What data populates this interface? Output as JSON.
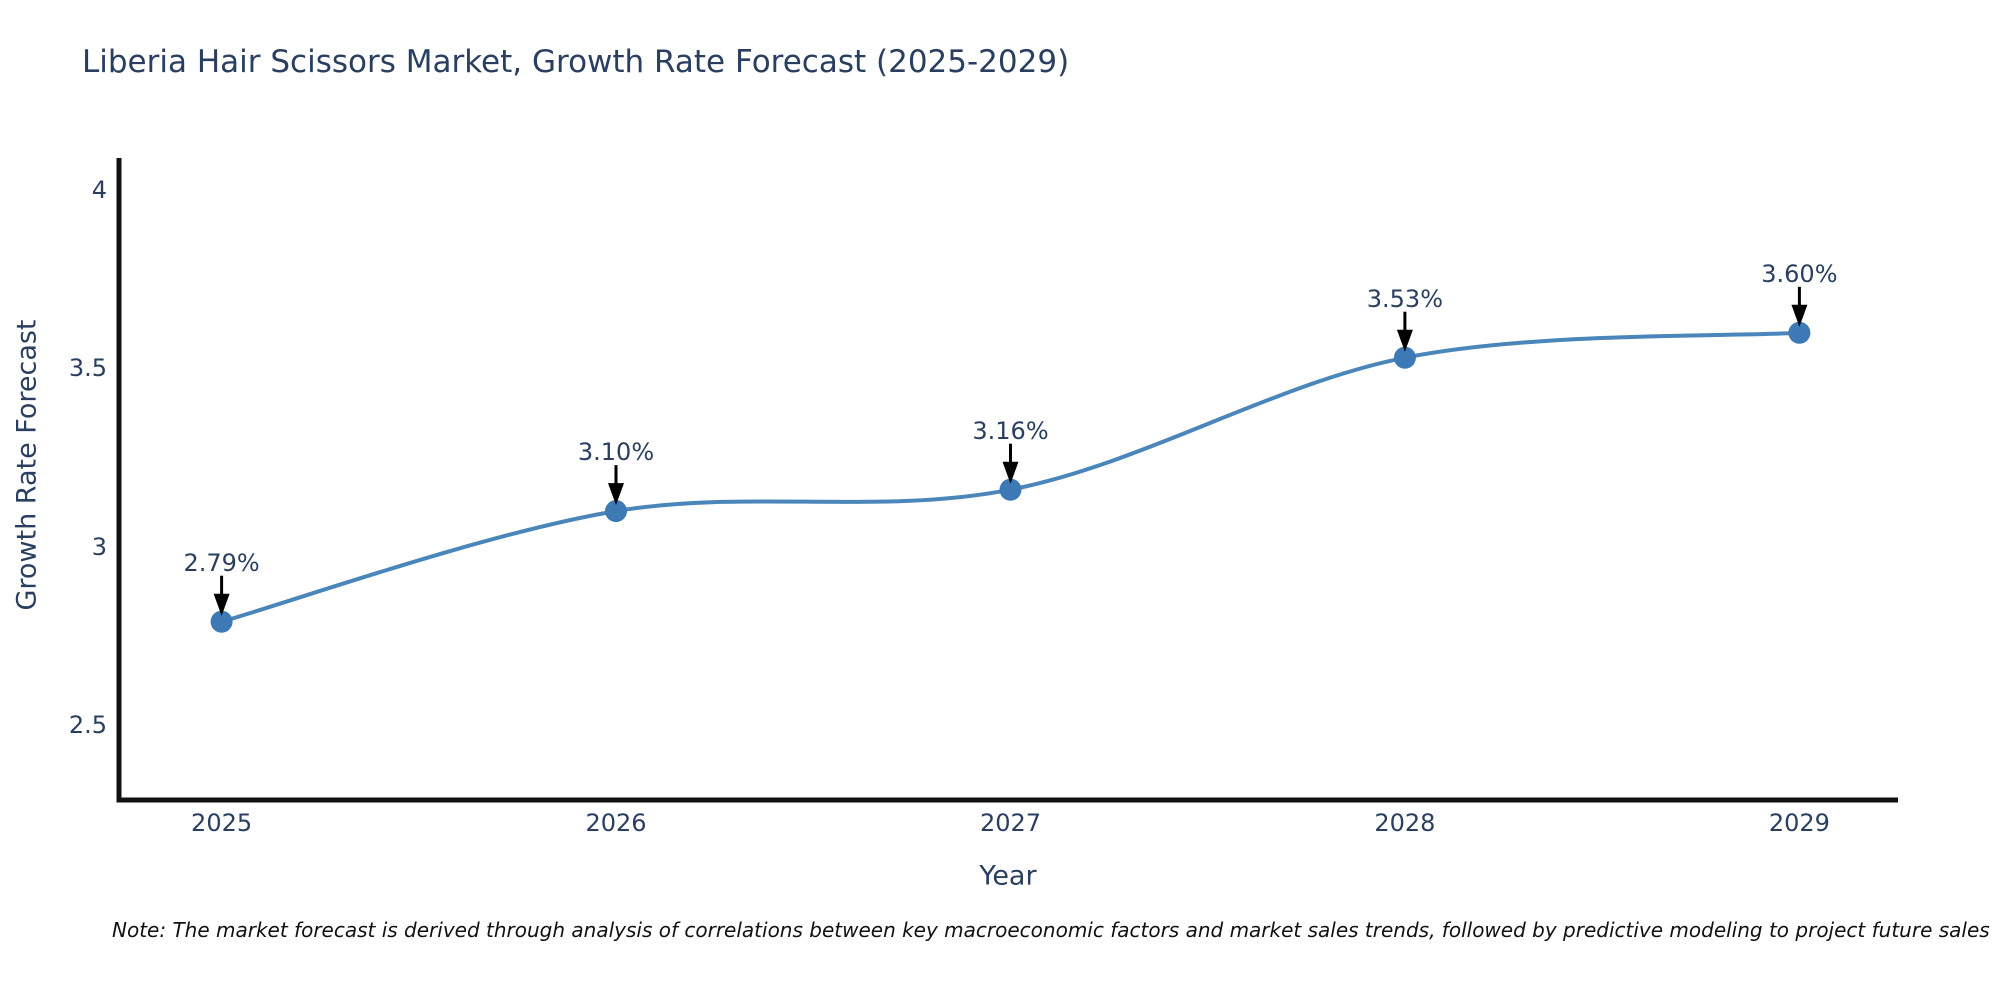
{
  "title": "Liberia Hair Scissors Market, Growth Rate Forecast (2025-2029)",
  "note": "Note: The market forecast is derived through analysis of correlations between key macroeconomic factors and market sales trends, followed by predictive modeling to project future sales",
  "chart_data": {
    "type": "line",
    "title": "Liberia Hair Scissors Market, Growth Rate Forecast (2025-2029)",
    "xlabel": "Year",
    "ylabel": "Growth Rate Forecast",
    "x": [
      2025,
      2026,
      2027,
      2028,
      2029
    ],
    "x_labels": [
      "2025",
      "2026",
      "2027",
      "2028",
      "2029"
    ],
    "values": [
      2.79,
      3.1,
      3.16,
      3.53,
      3.6
    ],
    "point_labels": [
      "2.79%",
      "3.10%",
      "3.16%",
      "3.53%",
      "3.60%"
    ],
    "yticks": [
      2.5,
      3,
      3.5,
      4
    ],
    "ytick_labels": [
      "2.5",
      "3",
      "3.5",
      "4"
    ],
    "ylim": [
      2.29,
      4.09
    ],
    "xlim": [
      2024.74,
      2029.25
    ],
    "grid": false,
    "line_shape": "spline",
    "legend": "none",
    "colors": {
      "line": "#4a86ba",
      "marker": "#3d7ab5",
      "text": "#2a3f5f",
      "axis": "#111111",
      "arrow": "#000000",
      "background": "#ffffff"
    }
  }
}
